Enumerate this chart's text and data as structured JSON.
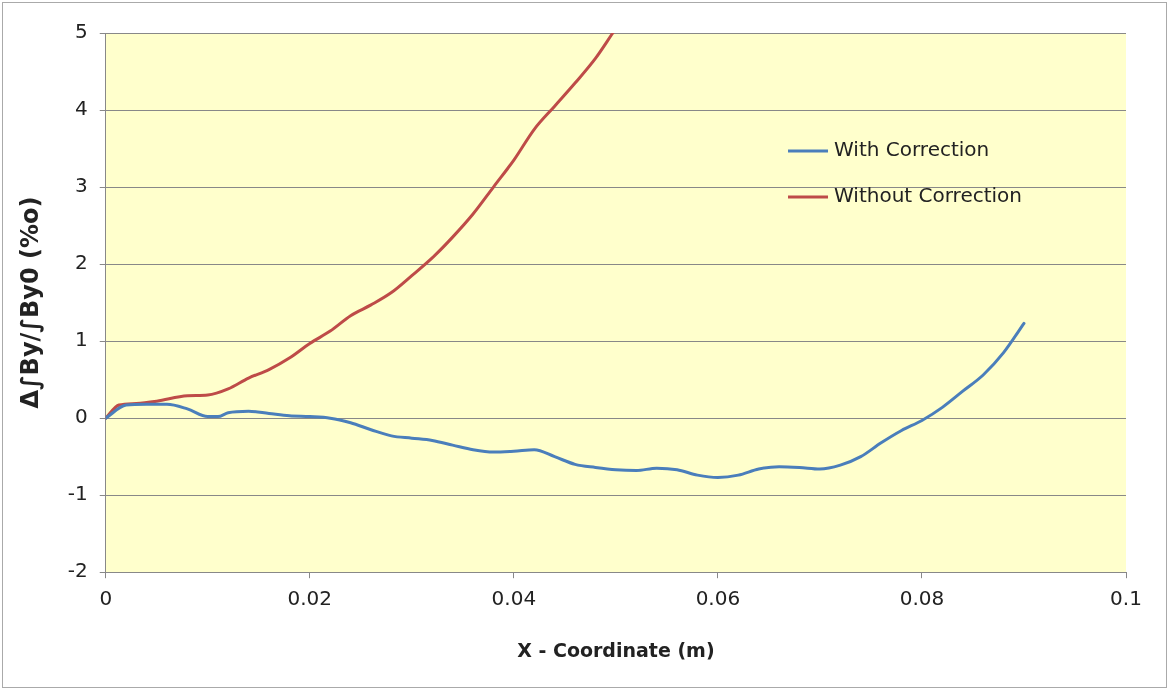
{
  "chart_data": {
    "type": "line",
    "xlabel": "X - Coordinate (m)",
    "ylabel": "Δ∫By/∫By0 (%o)",
    "xlim": [
      0,
      0.1
    ],
    "xticks": [
      0,
      0.02,
      0.04,
      0.06,
      0.08,
      0.1
    ],
    "ylim": [
      -2,
      5
    ],
    "yticks": [
      -2,
      -1,
      0,
      1,
      2,
      3,
      4,
      5
    ],
    "grid": "y",
    "legend": "top right",
    "marker": "none",
    "line_style": "solid",
    "series": [
      {
        "name": "With Correction",
        "color": "#4a7ebb",
        "x": [
          0,
          0.002,
          0.004,
          0.006,
          0.008,
          0.01,
          0.011,
          0.012,
          0.014,
          0.016,
          0.018,
          0.02,
          0.022,
          0.024,
          0.026,
          0.028,
          0.03,
          0.032,
          0.034,
          0.036,
          0.038,
          0.04,
          0.042,
          0.044,
          0.046,
          0.048,
          0.05,
          0.052,
          0.054,
          0.056,
          0.058,
          0.06,
          0.062,
          0.064,
          0.066,
          0.068,
          0.07,
          0.072,
          0.074,
          0.076,
          0.078,
          0.08,
          0.082,
          0.084,
          0.086,
          0.088,
          0.09
        ],
        "values": [
          0,
          0.17,
          0.18,
          0.18,
          0.12,
          0.02,
          0.02,
          0.07,
          0.09,
          0.06,
          0.03,
          0.02,
          0,
          -0.06,
          -0.15,
          -0.23,
          -0.26,
          -0.29,
          -0.35,
          -0.41,
          -0.44,
          -0.43,
          -0.41,
          -0.5,
          -0.6,
          -0.64,
          -0.67,
          -0.68,
          -0.65,
          -0.67,
          -0.74,
          -0.77,
          -0.74,
          -0.66,
          -0.63,
          -0.64,
          -0.66,
          -0.61,
          -0.5,
          -0.32,
          -0.16,
          -0.03,
          0.14,
          0.35,
          0.56,
          0.85,
          1.23
        ]
      },
      {
        "name": "Without Correction",
        "color": "#be4b48",
        "x": [
          0,
          0.0013,
          0.003,
          0.005,
          0.008,
          0.01,
          0.012,
          0.014,
          0.016,
          0.018,
          0.02,
          0.022,
          0.024,
          0.026,
          0.028,
          0.03,
          0.032,
          0.034,
          0.036,
          0.038,
          0.04,
          0.042,
          0.044,
          0.046,
          0.048,
          0.0497
        ],
        "values": [
          0,
          0.17,
          0.19,
          0.22,
          0.29,
          0.3,
          0.38,
          0.52,
          0.63,
          0.78,
          0.97,
          1.13,
          1.33,
          1.47,
          1.63,
          1.85,
          2.08,
          2.35,
          2.65,
          3,
          3.35,
          3.75,
          4.05,
          4.35,
          4.67,
          5
        ]
      }
    ]
  }
}
